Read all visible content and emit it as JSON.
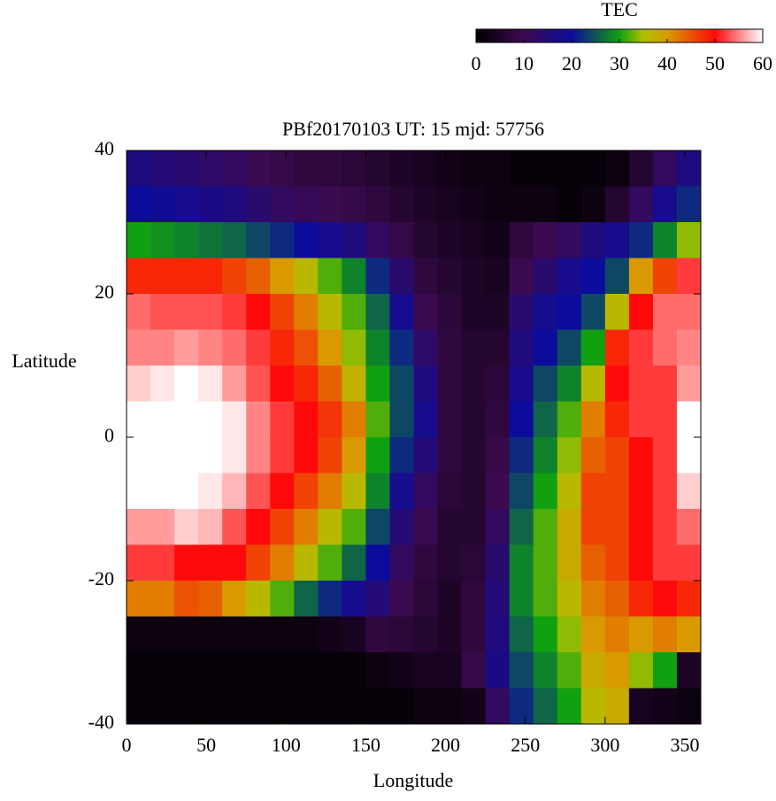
{
  "chart_data": {
    "type": "heatmap",
    "title": "PBf20170103  UT: 15  mjd: 57756",
    "xlabel": "Longitude",
    "ylabel": "Latitude",
    "colorbar_label": "TEC",
    "xlim": [
      0,
      360
    ],
    "xticks": [
      0,
      50,
      100,
      150,
      200,
      250,
      300,
      350
    ],
    "ylim": [
      -40,
      40
    ],
    "yticks": [
      -40,
      -20,
      0,
      20,
      40
    ],
    "clim": [
      0,
      60
    ],
    "cticks": [
      0,
      10,
      20,
      30,
      40,
      50,
      60
    ],
    "colormap": [
      {
        "value": 0,
        "color": "#000000"
      },
      {
        "value": 10,
        "color": "#3c0a50"
      },
      {
        "value": 20,
        "color": "#0c0c9c"
      },
      {
        "value": 30,
        "color": "#10a010"
      },
      {
        "value": 35,
        "color": "#b0c000"
      },
      {
        "value": 40,
        "color": "#d89a00"
      },
      {
        "value": 50,
        "color": "#ff0a0a"
      },
      {
        "value": 60,
        "color": "#ffffff"
      }
    ],
    "x": [
      7.5,
      22.5,
      37.5,
      52.5,
      67.5,
      82.5,
      97.5,
      112.5,
      127.5,
      142.5,
      157.5,
      172.5,
      187.5,
      202.5,
      217.5,
      232.5,
      247.5,
      262.5,
      277.5,
      292.5,
      307.5,
      322.5,
      337.5,
      352.5
    ],
    "y": [
      37.5,
      32.5,
      27.5,
      22.5,
      17.5,
      12.5,
      7.5,
      2.5,
      -2.5,
      -7.5,
      -12.5,
      -17.5,
      -22.5,
      -27.5,
      -32.5,
      -37.5
    ],
    "z": [
      [
        16,
        20,
        30,
        48,
        54,
        55,
        58,
        60,
        60,
        60,
        56,
        52,
        42,
        2,
        1,
        1
      ],
      [
        15,
        19,
        29,
        48,
        53,
        55,
        59,
        60,
        60,
        60,
        56,
        52,
        42,
        2,
        1,
        1
      ],
      [
        14,
        18,
        28,
        48,
        53,
        56,
        60,
        60,
        60,
        60,
        58,
        50,
        45,
        2,
        1,
        1
      ],
      [
        13,
        17,
        27,
        48,
        53,
        55,
        59,
        60,
        60,
        59,
        57,
        50,
        44,
        2,
        1,
        1
      ],
      [
        12,
        16,
        26,
        46,
        52,
        54,
        56,
        59,
        59,
        57,
        53,
        50,
        40,
        2,
        1,
        1
      ],
      [
        10,
        14,
        24,
        44,
        50,
        52,
        53,
        55,
        55,
        53,
        50,
        46,
        36,
        2,
        1,
        1
      ],
      [
        9,
        12,
        22,
        40,
        46,
        48,
        50,
        52,
        52,
        50,
        46,
        42,
        32,
        2,
        1,
        1
      ],
      [
        8,
        11,
        20,
        36,
        42,
        45,
        48,
        50,
        50,
        46,
        42,
        36,
        26,
        2,
        1,
        1
      ],
      [
        8,
        10,
        18,
        32,
        36,
        40,
        44,
        47,
        46,
        42,
        36,
        32,
        22,
        3,
        1,
        1
      ],
      [
        7,
        9,
        16,
        28,
        32,
        34,
        37,
        42,
        40,
        36,
        32,
        26,
        18,
        4,
        1,
        1
      ],
      [
        6,
        8,
        12,
        22,
        26,
        28,
        30,
        32,
        30,
        28,
        24,
        20,
        15,
        8,
        2,
        1
      ],
      [
        5,
        6,
        9,
        14,
        18,
        22,
        24,
        24,
        22,
        18,
        15,
        12,
        10,
        7,
        3,
        1
      ],
      [
        4,
        5,
        6,
        8,
        10,
        13,
        16,
        18,
        15,
        12,
        10,
        8,
        7,
        6,
        4,
        2
      ],
      [
        3,
        4,
        5,
        6,
        7,
        8,
        8,
        8,
        8,
        7,
        6,
        6,
        5,
        5,
        4,
        2
      ],
      [
        2,
        3,
        4,
        5,
        5,
        6,
        6,
        6,
        6,
        6,
        6,
        7,
        8,
        8,
        9,
        3
      ],
      [
        2,
        2,
        3,
        4,
        5,
        6,
        7,
        8,
        9,
        10,
        12,
        14,
        15,
        16,
        17,
        12
      ],
      [
        1,
        2,
        8,
        10,
        14,
        16,
        18,
        20,
        22,
        24,
        26,
        28,
        28,
        26,
        24,
        22
      ],
      [
        1,
        2,
        10,
        14,
        18,
        20,
        24,
        26,
        28,
        30,
        32,
        32,
        32,
        30,
        28,
        26
      ],
      [
        1,
        1,
        12,
        18,
        20,
        24,
        28,
        32,
        34,
        36,
        38,
        38,
        36,
        34,
        32,
        30
      ],
      [
        1,
        2,
        16,
        20,
        24,
        30,
        36,
        42,
        44,
        46,
        46,
        44,
        42,
        40,
        38,
        36
      ],
      [
        2,
        6,
        18,
        24,
        36,
        48,
        50,
        48,
        46,
        46,
        46,
        46,
        44,
        42,
        40,
        38
      ],
      [
        6,
        12,
        22,
        40,
        50,
        52,
        52,
        52,
        50,
        50,
        50,
        50,
        48,
        40,
        34,
        4
      ],
      [
        12,
        18,
        28,
        46,
        54,
        54,
        52,
        52,
        52,
        52,
        52,
        52,
        50,
        42,
        30,
        3
      ],
      [
        16,
        22,
        34,
        52,
        54,
        55,
        56,
        60,
        60,
        58,
        54,
        52,
        48,
        40,
        5,
        2
      ]
    ]
  }
}
